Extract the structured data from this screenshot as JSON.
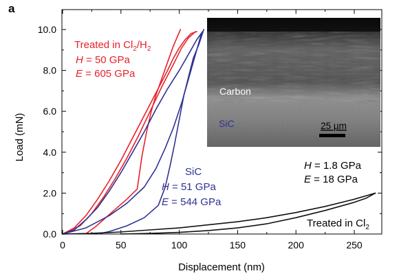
{
  "panel_label": "a",
  "colors": {
    "treated_cl2_h2": "#e8202a",
    "sic": "#2e3192",
    "treated_cl2": "#111111"
  },
  "chart_data": {
    "type": "line",
    "xlabel": "Displacement (nm)",
    "ylabel": "Load (mN)",
    "xlim": [
      0,
      270
    ],
    "ylim": [
      0,
      10
    ],
    "xticks": [
      0,
      50,
      100,
      150,
      200,
      250
    ],
    "yticks": [
      "0.0",
      "2.0",
      "4.0",
      "6.0",
      "8.0",
      "10.0"
    ],
    "grid": false,
    "series": [
      {
        "name": "Treated in Cl2/H2",
        "H": "50 GPa",
        "E": "605 GPa",
        "loading": [
          [
            0,
            0
          ],
          [
            10,
            0.3
          ],
          [
            20,
            0.9
          ],
          [
            30,
            1.7
          ],
          [
            40,
            2.6
          ],
          [
            50,
            3.6
          ],
          [
            60,
            4.7
          ],
          [
            70,
            5.8
          ],
          [
            80,
            6.9
          ],
          [
            90,
            8.0
          ],
          [
            95,
            8.6
          ],
          [
            100,
            9.1
          ],
          [
            105,
            9.5
          ],
          [
            110,
            9.8
          ],
          [
            115,
            9.9
          ]
        ],
        "loading_b": [
          [
            0,
            0
          ],
          [
            15,
            0.4
          ],
          [
            25,
            1.0
          ],
          [
            35,
            1.8
          ],
          [
            45,
            2.7
          ],
          [
            55,
            3.7
          ],
          [
            65,
            4.8
          ],
          [
            75,
            6.0
          ],
          [
            85,
            7.2
          ],
          [
            95,
            8.3
          ],
          [
            102,
            9.1
          ],
          [
            108,
            9.6
          ],
          [
            114,
            9.9
          ]
        ],
        "unloading": [
          [
            101,
            10.0
          ],
          [
            95,
            9.2
          ],
          [
            90,
            8.4
          ],
          [
            85,
            7.6
          ],
          [
            80,
            6.8
          ],
          [
            76,
            6.0
          ],
          [
            72,
            5.0
          ],
          [
            68,
            3.8
          ],
          [
            66,
            3.0
          ],
          [
            64,
            2.2
          ],
          [
            55,
            1.7
          ],
          [
            45,
            1.2
          ],
          [
            35,
            0.7
          ],
          [
            28,
            0.35
          ],
          [
            22,
            0.1
          ],
          [
            20,
            0.0
          ]
        ]
      },
      {
        "name": "SiC",
        "H": "51 GPa",
        "E": "544 GPa",
        "loading": [
          [
            0,
            0
          ],
          [
            10,
            0.2
          ],
          [
            20,
            0.7
          ],
          [
            30,
            1.3
          ],
          [
            40,
            2.1
          ],
          [
            50,
            3.0
          ],
          [
            60,
            4.0
          ],
          [
            70,
            5.0
          ],
          [
            80,
            6.1
          ],
          [
            90,
            7.1
          ],
          [
            100,
            8.0
          ],
          [
            110,
            9.0
          ],
          [
            115,
            9.5
          ],
          [
            120,
            9.9
          ]
        ],
        "loading_b": [
          [
            0,
            0
          ],
          [
            20,
            0.3
          ],
          [
            40,
            0.9
          ],
          [
            55,
            1.5
          ],
          [
            70,
            2.3
          ],
          [
            80,
            3.2
          ],
          [
            88,
            4.2
          ],
          [
            95,
            5.2
          ],
          [
            102,
            6.4
          ],
          [
            108,
            7.6
          ],
          [
            114,
            8.8
          ],
          [
            119,
            9.8
          ]
        ],
        "unloading": [
          [
            121,
            10.0
          ],
          [
            117,
            9.3
          ],
          [
            112,
            8.6
          ],
          [
            108,
            7.7
          ],
          [
            104,
            6.8
          ],
          [
            100,
            5.6
          ],
          [
            96,
            4.4
          ],
          [
            92,
            3.3
          ],
          [
            88,
            2.3
          ],
          [
            82,
            1.4
          ],
          [
            70,
            0.8
          ],
          [
            55,
            0.4
          ],
          [
            40,
            0.12
          ],
          [
            30,
            0.0
          ]
        ]
      },
      {
        "name": "Treated in Cl2",
        "H": "1.8 GPa",
        "E": "18  GPa",
        "loading": [
          [
            0,
            0
          ],
          [
            25,
            0.03
          ],
          [
            50,
            0.1
          ],
          [
            75,
            0.2
          ],
          [
            100,
            0.3
          ],
          [
            125,
            0.45
          ],
          [
            150,
            0.6
          ],
          [
            175,
            0.8
          ],
          [
            200,
            1.05
          ],
          [
            225,
            1.35
          ],
          [
            250,
            1.7
          ],
          [
            268,
            2.0
          ]
        ],
        "unloading": [
          [
            268,
            2.0
          ],
          [
            260,
            1.75
          ],
          [
            250,
            1.55
          ],
          [
            225,
            1.15
          ],
          [
            200,
            0.8
          ],
          [
            175,
            0.5
          ],
          [
            150,
            0.3
          ],
          [
            125,
            0.17
          ],
          [
            100,
            0.08
          ],
          [
            75,
            0.03
          ],
          [
            50,
            0.0
          ]
        ]
      }
    ],
    "annotations": {
      "cl2h2_title": "Treated in Cl",
      "cl2h2_sub": "2",
      "cl2h2_mid": "/H",
      "cl2h2_sub2": "2",
      "cl2h2_H_label": "H",
      "cl2h2_H_value": " = 50 GPa",
      "cl2h2_E_label": "E",
      "cl2h2_E_value": " = 605 GPa",
      "sic_title": "SiC",
      "sic_H_label": "H",
      "sic_H_value": " = 51 GPa",
      "sic_E_label": "E",
      "sic_E_value": " = 544 GPa",
      "cl2_H_label": "H",
      "cl2_H_value": " = 1.8 GPa",
      "cl2_E_label": "E",
      "cl2_E_value": " = 18  GPa",
      "cl2_title": "Treated in Cl",
      "cl2_sub": "2"
    },
    "inset": {
      "carbon_label": "Carbon",
      "sic_label": "SiC",
      "scale_label": "25 µm"
    }
  }
}
